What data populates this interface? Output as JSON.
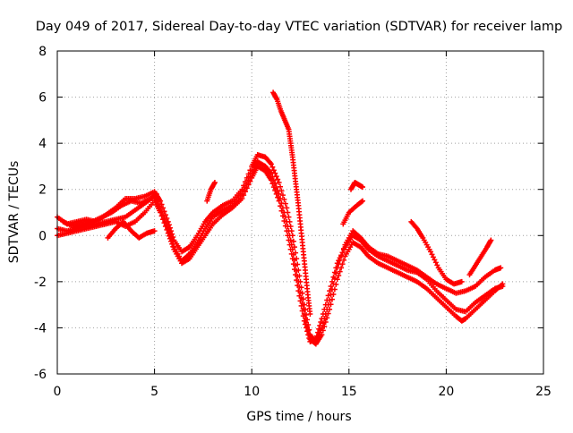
{
  "chart_data": {
    "type": "scatter",
    "title": "Day 049 of 2017, Sidereal Day-to-day VTEC variation (SDTVAR) for receiver lamp",
    "xlabel": "GPS time / hours",
    "ylabel": "SDTVAR / TECUs",
    "xlim": [
      0,
      25
    ],
    "ylim": [
      -6,
      8
    ],
    "xticks": [
      0,
      5,
      10,
      15,
      20,
      25
    ],
    "yticks": [
      -6,
      -4,
      -2,
      0,
      2,
      4,
      6,
      8
    ],
    "grid": true,
    "marker": "plus",
    "color": "#ff0000",
    "series": [
      {
        "points": [
          [
            0.0,
            0.8
          ],
          [
            0.5,
            0.5
          ],
          [
            1.0,
            0.6
          ],
          [
            1.5,
            0.7
          ],
          [
            2.0,
            0.6
          ],
          [
            2.5,
            0.9
          ],
          [
            3.0,
            1.2
          ],
          [
            3.5,
            1.6
          ],
          [
            4.0,
            1.6
          ],
          [
            4.5,
            1.7
          ],
          [
            5.0,
            1.9
          ],
          [
            5.3,
            1.5
          ],
          [
            5.7,
            0.6
          ],
          [
            6.0,
            -0.2
          ],
          [
            6.4,
            -0.7
          ],
          [
            6.8,
            -0.5
          ],
          [
            7.2,
            0.0
          ],
          [
            7.6,
            0.6
          ],
          [
            8.0,
            1.0
          ],
          [
            8.5,
            1.3
          ],
          [
            9.0,
            1.5
          ],
          [
            9.5,
            2.0
          ],
          [
            10.0,
            3.0
          ],
          [
            10.3,
            3.5
          ],
          [
            10.7,
            3.4
          ],
          [
            11.0,
            3.1
          ],
          [
            11.4,
            2.3
          ],
          [
            11.8,
            1.2
          ],
          [
            12.1,
            0.0
          ],
          [
            12.4,
            -1.5
          ],
          [
            12.7,
            -3.0
          ],
          [
            13.0,
            -4.3
          ],
          [
            13.3,
            -4.6
          ],
          [
            13.6,
            -4.0
          ],
          [
            14.0,
            -2.8
          ],
          [
            14.4,
            -1.4
          ],
          [
            14.8,
            -0.4
          ],
          [
            15.2,
            0.2
          ],
          [
            15.6,
            -0.1
          ],
          [
            16.0,
            -0.5
          ],
          [
            16.5,
            -0.8
          ],
          [
            17.0,
            -0.9
          ],
          [
            17.5,
            -1.1
          ],
          [
            18.0,
            -1.3
          ],
          [
            18.5,
            -1.5
          ],
          [
            19.0,
            -1.8
          ],
          [
            19.5,
            -2.1
          ],
          [
            20.0,
            -2.3
          ],
          [
            20.5,
            -2.5
          ],
          [
            21.0,
            -2.4
          ],
          [
            21.5,
            -2.2
          ],
          [
            22.0,
            -1.8
          ],
          [
            22.5,
            -1.5
          ],
          [
            22.8,
            -1.4
          ]
        ]
      },
      {
        "points": [
          [
            0.0,
            0.3
          ],
          [
            0.5,
            0.2
          ],
          [
            1.0,
            0.3
          ],
          [
            1.5,
            0.4
          ],
          [
            2.0,
            0.5
          ],
          [
            2.5,
            0.6
          ],
          [
            3.0,
            0.7
          ],
          [
            3.5,
            0.8
          ],
          [
            4.0,
            1.1
          ],
          [
            4.5,
            1.4
          ],
          [
            5.0,
            1.7
          ],
          [
            5.3,
            1.2
          ],
          [
            5.7,
            0.3
          ],
          [
            6.0,
            -0.5
          ],
          [
            6.4,
            -1.1
          ],
          [
            6.8,
            -0.8
          ],
          [
            7.2,
            -0.3
          ],
          [
            7.6,
            0.3
          ],
          [
            8.0,
            0.8
          ],
          [
            8.5,
            1.1
          ],
          [
            9.0,
            1.3
          ],
          [
            9.5,
            1.8
          ],
          [
            10.0,
            2.7
          ],
          [
            10.3,
            3.2
          ],
          [
            10.7,
            3.0
          ],
          [
            11.0,
            2.7
          ],
          [
            11.4,
            1.8
          ],
          [
            11.8,
            0.6
          ],
          [
            12.1,
            -0.6
          ],
          [
            12.4,
            -2.0
          ],
          [
            12.7,
            -3.4
          ],
          [
            13.0,
            -4.5
          ],
          [
            13.3,
            -4.7
          ],
          [
            13.6,
            -4.3
          ],
          [
            14.0,
            -3.2
          ],
          [
            14.4,
            -1.9
          ],
          [
            14.8,
            -0.9
          ],
          [
            15.2,
            -0.3
          ],
          [
            15.6,
            -0.5
          ],
          [
            16.0,
            -0.9
          ],
          [
            16.5,
            -1.2
          ],
          [
            17.0,
            -1.4
          ],
          [
            17.5,
            -1.6
          ],
          [
            18.0,
            -1.8
          ],
          [
            18.5,
            -2.0
          ],
          [
            19.0,
            -2.3
          ],
          [
            19.5,
            -2.7
          ],
          [
            20.0,
            -3.1
          ],
          [
            20.5,
            -3.5
          ],
          [
            20.8,
            -3.7
          ],
          [
            21.0,
            -3.6
          ],
          [
            21.5,
            -3.2
          ],
          [
            22.0,
            -2.8
          ],
          [
            22.5,
            -2.4
          ],
          [
            22.9,
            -2.1
          ]
        ]
      },
      {
        "points": [
          [
            0.0,
            0.0
          ],
          [
            0.5,
            0.1
          ],
          [
            1.0,
            0.2
          ],
          [
            1.5,
            0.3
          ],
          [
            2.0,
            0.4
          ],
          [
            2.5,
            0.5
          ],
          [
            3.0,
            0.6
          ],
          [
            3.5,
            0.4
          ],
          [
            4.0,
            0.6
          ],
          [
            4.5,
            1.0
          ],
          [
            5.0,
            1.5
          ],
          [
            5.3,
            1.0
          ],
          [
            5.7,
            0.1
          ],
          [
            6.0,
            -0.6
          ],
          [
            6.4,
            -1.2
          ],
          [
            6.8,
            -1.0
          ],
          [
            7.2,
            -0.5
          ],
          [
            7.6,
            0.0
          ],
          [
            8.0,
            0.5
          ],
          [
            8.5,
            0.9
          ],
          [
            9.0,
            1.2
          ],
          [
            9.5,
            1.6
          ],
          [
            10.0,
            2.5
          ],
          [
            10.3,
            3.0
          ],
          [
            10.7,
            2.8
          ],
          [
            11.0,
            2.4
          ],
          [
            11.4,
            1.5
          ],
          [
            11.8,
            0.2
          ],
          [
            12.1,
            -1.0
          ],
          [
            12.4,
            -2.4
          ],
          [
            12.7,
            -3.7
          ],
          [
            13.0,
            -4.6
          ],
          [
            13.3,
            -4.5
          ],
          [
            13.6,
            -3.6
          ],
          [
            14.0,
            -2.4
          ],
          [
            14.4,
            -1.2
          ],
          [
            14.8,
            -0.5
          ],
          [
            15.2,
            0.0
          ],
          [
            15.6,
            -0.2
          ],
          [
            16.0,
            -0.6
          ],
          [
            16.5,
            -0.9
          ],
          [
            17.0,
            -1.1
          ],
          [
            17.5,
            -1.3
          ],
          [
            18.0,
            -1.5
          ],
          [
            18.5,
            -1.6
          ],
          [
            19.0,
            -1.9
          ],
          [
            19.5,
            -2.4
          ],
          [
            20.0,
            -2.8
          ],
          [
            20.5,
            -3.2
          ],
          [
            21.0,
            -3.3
          ],
          [
            21.5,
            -2.9
          ],
          [
            22.0,
            -2.6
          ],
          [
            22.5,
            -2.3
          ],
          [
            22.9,
            -2.2
          ]
        ]
      },
      {
        "points": [
          [
            0.3,
            0.6
          ],
          [
            0.8,
            0.4
          ],
          [
            1.3,
            0.5
          ],
          [
            1.8,
            0.6
          ],
          [
            2.3,
            0.8
          ],
          [
            2.8,
            1.0
          ],
          [
            3.3,
            1.3
          ],
          [
            3.8,
            1.5
          ],
          [
            4.3,
            1.4
          ],
          [
            4.8,
            1.6
          ],
          [
            5.1,
            1.8
          ]
        ]
      },
      {
        "points": [
          [
            2.6,
            -0.1
          ],
          [
            3.0,
            0.3
          ],
          [
            3.4,
            0.6
          ],
          [
            3.8,
            0.2
          ],
          [
            4.2,
            -0.1
          ],
          [
            4.6,
            0.1
          ],
          [
            5.0,
            0.2
          ]
        ]
      },
      {
        "points": [
          [
            7.7,
            1.5
          ],
          [
            7.9,
            2.0
          ],
          [
            8.1,
            2.3
          ]
        ]
      },
      {
        "points": [
          [
            11.1,
            6.2
          ],
          [
            11.3,
            5.9
          ],
          [
            11.5,
            5.4
          ],
          [
            11.7,
            5.0
          ],
          [
            11.9,
            4.6
          ],
          [
            12.0,
            4.0
          ],
          [
            12.1,
            3.4
          ],
          [
            12.2,
            2.7
          ],
          [
            12.3,
            2.0
          ],
          [
            12.4,
            1.3
          ],
          [
            12.5,
            0.5
          ],
          [
            12.6,
            -0.3
          ],
          [
            12.7,
            -1.1
          ],
          [
            12.8,
            -1.9
          ],
          [
            12.9,
            -2.7
          ],
          [
            13.0,
            -3.4
          ]
        ]
      },
      {
        "points": [
          [
            14.7,
            0.5
          ],
          [
            15.0,
            1.0
          ],
          [
            15.4,
            1.3
          ],
          [
            15.7,
            1.5
          ]
        ]
      },
      {
        "points": [
          [
            15.1,
            2.0
          ],
          [
            15.3,
            2.3
          ],
          [
            15.5,
            2.2
          ],
          [
            15.7,
            2.1
          ]
        ]
      },
      {
        "points": [
          [
            18.2,
            0.6
          ],
          [
            18.5,
            0.3
          ],
          [
            18.8,
            -0.1
          ],
          [
            19.2,
            -0.7
          ],
          [
            19.6,
            -1.4
          ],
          [
            20.0,
            -1.9
          ],
          [
            20.4,
            -2.1
          ],
          [
            20.8,
            -2.0
          ]
        ]
      },
      {
        "points": [
          [
            21.2,
            -1.7
          ],
          [
            21.5,
            -1.3
          ],
          [
            21.8,
            -0.9
          ],
          [
            22.1,
            -0.5
          ],
          [
            22.3,
            -0.2
          ]
        ]
      }
    ]
  }
}
